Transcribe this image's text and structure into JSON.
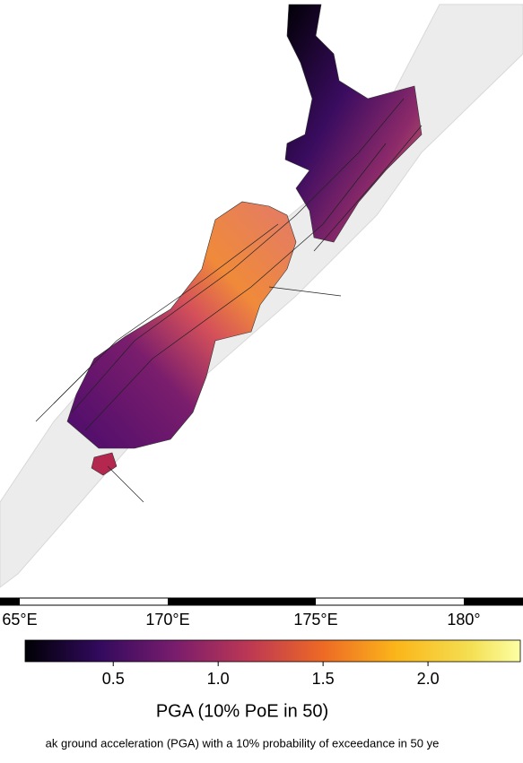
{
  "map": {
    "longitude_labels": [
      "65°E",
      "170°E",
      "175°E",
      "180°"
    ],
    "colorbar": {
      "label": "PGA (10% PoE in 50)",
      "lim": [
        0.08,
        2.44
      ],
      "ticks": [
        0.5,
        {
          "value": 1,
          "label": "1.0"
        },
        1.5,
        {
          "value": 2,
          "label": "2.0"
        }
      ]
    },
    "caption": "ak ground acceleration (PGA) with a 10% probability of exceedance in 50 ye"
  }
}
